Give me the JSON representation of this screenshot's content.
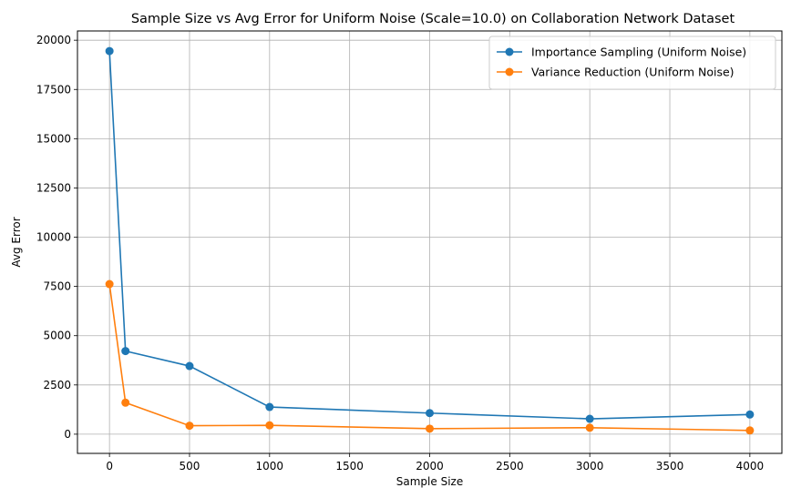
{
  "chart_data": {
    "type": "line",
    "title": "Sample Size vs Avg Error for Uniform Noise (Scale=10.0) on Collaboration Network Dataset",
    "xlabel": "Sample Size",
    "ylabel": "Avg Error",
    "xlim": [
      -200,
      4200
    ],
    "ylim": [
      -975,
      20470
    ],
    "xticks": [
      0,
      500,
      1000,
      1500,
      2000,
      2500,
      3000,
      3500,
      4000
    ],
    "yticks": [
      0,
      2500,
      5000,
      7500,
      10000,
      12500,
      15000,
      17500,
      20000
    ],
    "grid": true,
    "legend_position": "top-right",
    "x": [
      0,
      100,
      500,
      1000,
      2000,
      3000,
      4000
    ],
    "series": [
      {
        "name": "Importance Sampling (Uniform Noise)",
        "color": "#1f77b4",
        "marker": "circle",
        "values": [
          19450,
          4220,
          3460,
          1380,
          1070,
          780,
          1000
        ]
      },
      {
        "name": "Variance Reduction (Uniform Noise)",
        "color": "#ff7f0e",
        "marker": "circle",
        "values": [
          7620,
          1600,
          430,
          450,
          280,
          330,
          190
        ]
      }
    ]
  }
}
